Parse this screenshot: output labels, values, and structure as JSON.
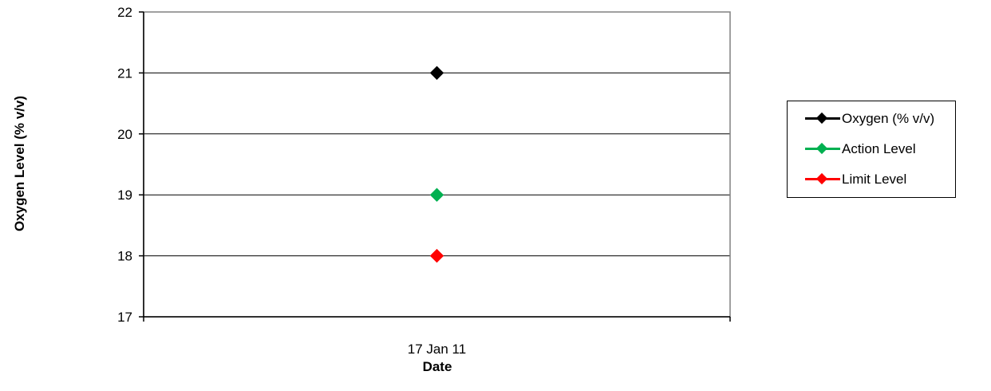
{
  "chart_data": {
    "type": "line",
    "xlabel": "Date",
    "ylabel": "Oxygen Level (% v/v)",
    "categories": [
      "17 Jan 11"
    ],
    "ylim": [
      17,
      22
    ],
    "yticks": [
      17,
      18,
      19,
      20,
      21,
      22
    ],
    "grid": true,
    "legend_position": "right",
    "series": [
      {
        "name": "Oxygen (% v/v)",
        "values": [
          21
        ],
        "color": "#000000"
      },
      {
        "name": "Action Level",
        "values": [
          19
        ],
        "color": "#00b050"
      },
      {
        "name": "Limit Level",
        "values": [
          18
        ],
        "color": "#ff0000"
      }
    ]
  }
}
